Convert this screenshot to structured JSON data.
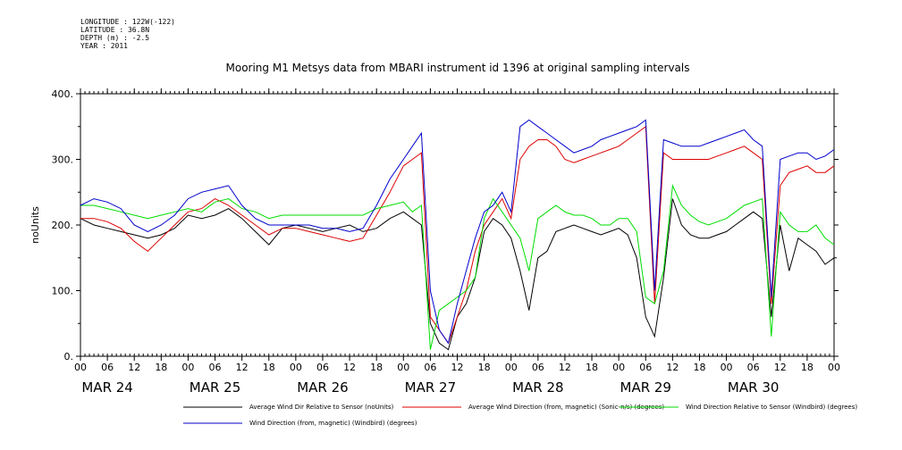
{
  "header": {
    "longitude": "LONGITUDE : 122W(-122)",
    "latitude": "LATITUDE : 36.8N",
    "depth": "DEPTH (m) : -2.5",
    "year": "YEAR : 2011"
  },
  "chart_data": {
    "type": "line",
    "title": "Mooring M1 Metsys data from MBARI instrument id 1396 at original sampling intervals",
    "xlabel": "",
    "ylabel": "noUnits",
    "xlim": [
      0,
      168
    ],
    "ylim": [
      0,
      400
    ],
    "yticks": [
      0,
      100,
      200,
      300,
      400
    ],
    "yticklabels": [
      "0.",
      "100.",
      "200.",
      "300.",
      "400."
    ],
    "hour_ticks": [
      "00",
      "06",
      "12",
      "18",
      "00",
      "06",
      "12",
      "18",
      "00",
      "06",
      "12",
      "18",
      "00",
      "06",
      "12",
      "18",
      "00",
      "06",
      "12",
      "18",
      "00",
      "06",
      "12",
      "18",
      "00",
      "06",
      "12",
      "18",
      "00"
    ],
    "day_labels": [
      "MAR 24",
      "MAR 25",
      "MAR 26",
      "MAR 27",
      "MAR 28",
      "MAR 29",
      "MAR 30"
    ],
    "grid": false,
    "legend_position": "bottom",
    "series": [
      {
        "name": "Average Wind Dir Relative to Sensor (noUnits)",
        "color": "#000000",
        "x": [
          0,
          3,
          6,
          9,
          12,
          15,
          18,
          21,
          24,
          27,
          30,
          33,
          36,
          39,
          42,
          45,
          48,
          51,
          54,
          57,
          60,
          63,
          66,
          69,
          72,
          74,
          76,
          78,
          80,
          82,
          84,
          86,
          88,
          90,
          92,
          94,
          96,
          98,
          100,
          102,
          104,
          106,
          108,
          110,
          112,
          114,
          116,
          118,
          120,
          122,
          124,
          126,
          128,
          130,
          132,
          134,
          136,
          138,
          140,
          142,
          144,
          146,
          148,
          150,
          152,
          154,
          156,
          158,
          160,
          162,
          164,
          166,
          168
        ],
        "y": [
          210,
          200,
          195,
          190,
          185,
          180,
          185,
          195,
          215,
          210,
          215,
          225,
          210,
          190,
          170,
          195,
          200,
          195,
          190,
          195,
          200,
          190,
          195,
          210,
          220,
          210,
          200,
          50,
          20,
          10,
          60,
          80,
          120,
          190,
          210,
          200,
          180,
          130,
          70,
          150,
          160,
          190,
          195,
          200,
          195,
          190,
          185,
          190,
          195,
          185,
          150,
          60,
          30,
          120,
          240,
          200,
          185,
          180,
          180,
          185,
          190,
          200,
          210,
          220,
          210,
          60,
          200,
          130,
          180,
          170,
          160,
          140,
          150
        ]
      },
      {
        "name": "Average Wind Direction (from, magnetic) (Sonic-n/s) (degrees)",
        "color": "#dd0000",
        "x": [
          0,
          3,
          6,
          9,
          12,
          15,
          18,
          21,
          24,
          27,
          30,
          33,
          36,
          39,
          42,
          45,
          48,
          51,
          54,
          57,
          60,
          63,
          66,
          69,
          72,
          74,
          76,
          78,
          80,
          82,
          84,
          86,
          88,
          90,
          92,
          94,
          96,
          98,
          100,
          102,
          104,
          106,
          108,
          110,
          112,
          114,
          116,
          118,
          120,
          122,
          124,
          126,
          128,
          130,
          132,
          134,
          136,
          138,
          140,
          142,
          144,
          146,
          148,
          150,
          152,
          154,
          156,
          158,
          160,
          162,
          164,
          166,
          168
        ],
        "y": [
          210,
          210,
          205,
          195,
          175,
          160,
          180,
          200,
          220,
          225,
          240,
          230,
          215,
          200,
          185,
          195,
          195,
          190,
          185,
          180,
          175,
          180,
          215,
          250,
          290,
          300,
          310,
          60,
          40,
          20,
          60,
          100,
          160,
          200,
          220,
          240,
          210,
          300,
          320,
          330,
          330,
          320,
          300,
          295,
          300,
          305,
          310,
          315,
          320,
          330,
          340,
          350,
          80,
          310,
          300,
          300,
          300,
          300,
          300,
          305,
          310,
          315,
          320,
          310,
          300,
          80,
          260,
          280,
          285,
          290,
          280,
          280,
          290
        ]
      },
      {
        "name": "Wind Direction Relative to Sensor (Windbird) (degrees)",
        "color": "#00dd00",
        "x": [
          0,
          3,
          6,
          9,
          12,
          15,
          18,
          21,
          24,
          27,
          30,
          33,
          36,
          39,
          42,
          45,
          48,
          51,
          54,
          57,
          60,
          63,
          66,
          69,
          72,
          74,
          76,
          78,
          80,
          82,
          84,
          86,
          88,
          90,
          92,
          94,
          96,
          98,
          100,
          102,
          104,
          106,
          108,
          110,
          112,
          114,
          116,
          118,
          120,
          122,
          124,
          126,
          128,
          130,
          132,
          134,
          136,
          138,
          140,
          142,
          144,
          146,
          148,
          150,
          152,
          154,
          156,
          158,
          160,
          162,
          164,
          166,
          168
        ],
        "y": [
          230,
          230,
          225,
          220,
          215,
          210,
          215,
          220,
          225,
          220,
          235,
          240,
          225,
          220,
          210,
          215,
          215,
          215,
          215,
          215,
          215,
          215,
          225,
          230,
          235,
          220,
          230,
          10,
          70,
          80,
          90,
          100,
          120,
          210,
          240,
          220,
          200,
          180,
          130,
          210,
          220,
          230,
          220,
          215,
          215,
          210,
          200,
          200,
          210,
          210,
          190,
          90,
          80,
          130,
          260,
          230,
          215,
          205,
          200,
          205,
          210,
          220,
          230,
          235,
          240,
          30,
          220,
          200,
          190,
          190,
          200,
          180,
          170
        ]
      },
      {
        "name": "Wind Direction (from, magnetic) (Windbird) (degrees)",
        "color": "#0000cc",
        "x": [
          0,
          3,
          6,
          9,
          12,
          15,
          18,
          21,
          24,
          27,
          30,
          33,
          36,
          39,
          42,
          45,
          48,
          51,
          54,
          57,
          60,
          63,
          66,
          69,
          72,
          74,
          76,
          78,
          80,
          82,
          84,
          86,
          88,
          90,
          92,
          94,
          96,
          98,
          100,
          102,
          104,
          106,
          108,
          110,
          112,
          114,
          116,
          118,
          120,
          122,
          124,
          126,
          128,
          130,
          132,
          134,
          136,
          138,
          140,
          142,
          144,
          146,
          148,
          150,
          152,
          154,
          156,
          158,
          160,
          162,
          164,
          166,
          168
        ],
        "y": [
          230,
          240,
          235,
          225,
          200,
          190,
          200,
          215,
          240,
          250,
          255,
          260,
          230,
          210,
          200,
          200,
          200,
          200,
          195,
          195,
          190,
          195,
          230,
          270,
          300,
          320,
          340,
          100,
          40,
          20,
          80,
          130,
          180,
          220,
          230,
          250,
          220,
          350,
          360,
          350,
          340,
          330,
          320,
          310,
          315,
          320,
          330,
          335,
          340,
          345,
          350,
          360,
          100,
          330,
          325,
          320,
          320,
          320,
          325,
          330,
          335,
          340,
          345,
          330,
          320,
          90,
          300,
          305,
          310,
          310,
          300,
          305,
          315
        ]
      }
    ]
  }
}
